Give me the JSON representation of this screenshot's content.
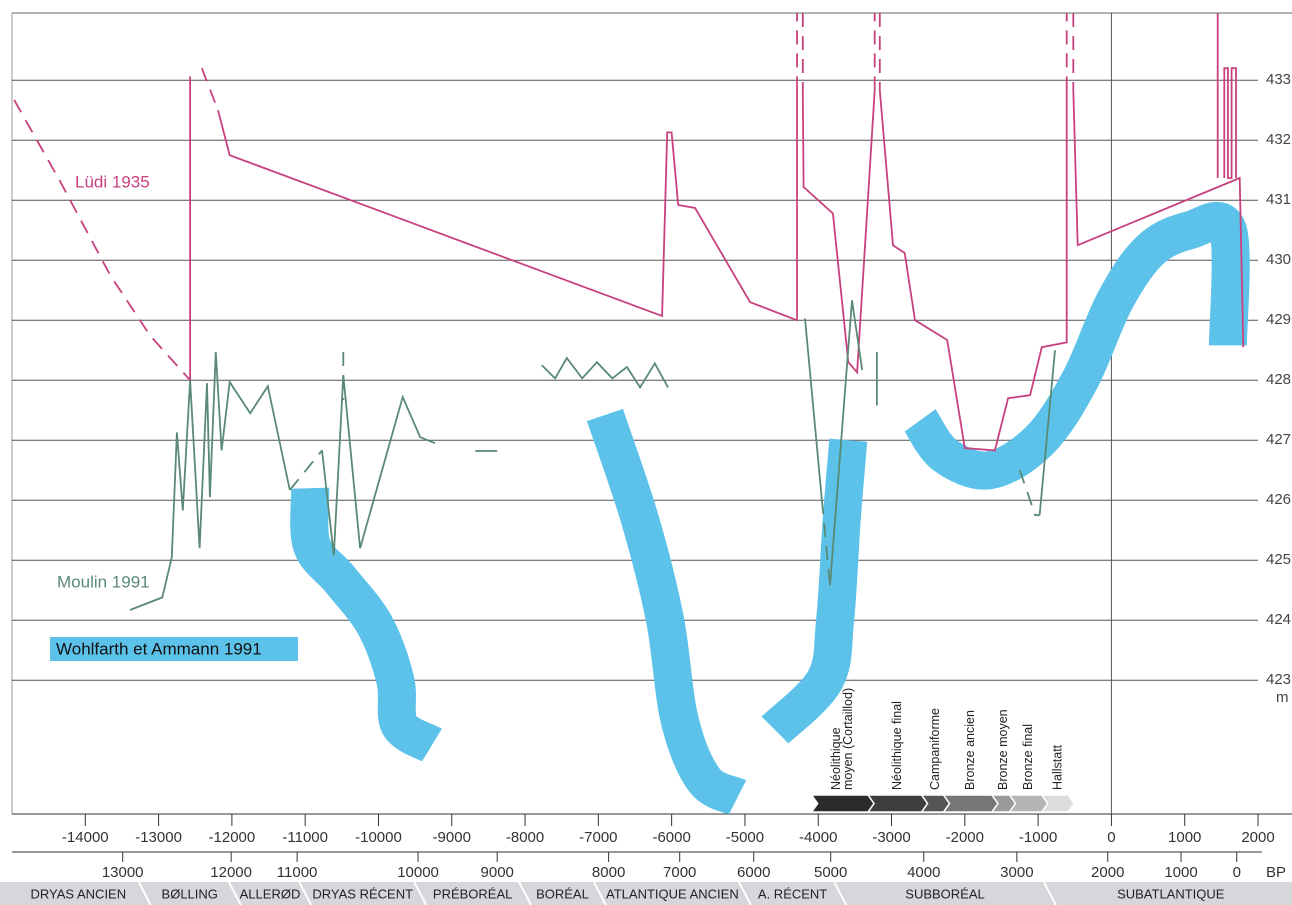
{
  "chart_data": {
    "type": "line",
    "xlim": [
      -15000,
      2000
    ],
    "ylim": [
      420.77,
      434.12
    ],
    "xticks": [
      -14000,
      -13000,
      -12000,
      -11000,
      -10000,
      -9000,
      -8000,
      -7000,
      -6000,
      -5000,
      -4000,
      -3000,
      -2000,
      -1000,
      0,
      1000,
      2000
    ],
    "yticks": [
      423,
      424,
      425,
      426,
      427,
      428,
      429,
      430,
      431,
      432,
      433
    ],
    "y_unit": "m",
    "grid": true,
    "x_refline": 0,
    "bp_axis": {
      "label": "BP",
      "ticks": [
        13000,
        12000,
        11000,
        10000,
        9000,
        8000,
        7000,
        6000,
        5000,
        4000,
        3000,
        2000,
        1000,
        0
      ],
      "cal_years": [
        -13490,
        -12010,
        -11110,
        -9460,
        -8380,
        -6860,
        -5890,
        -4880,
        -3830,
        -2560,
        -1290,
        -50,
        950,
        1710
      ]
    },
    "series": [
      {
        "name": "Lüdi 1935",
        "color": "#c8417f",
        "style": "line",
        "legend": "text",
        "pieces": [
          {
            "dashed": false,
            "x": [
              -12570,
              -12570,
              null,
              -12190,
              -12030,
              -6130,
              -6060,
              -6000,
              -5910,
              -5680,
              -4930,
              -4290,
              -4290,
              null,
              -4210,
              -4200,
              -3800,
              -3590,
              -3470,
              -3230,
              null,
              -3160,
              -2980,
              -2820,
              -2680,
              -2240,
              -2000,
              -1590,
              -1410,
              -1110,
              -950,
              -610,
              -610,
              null,
              -520,
              -460,
              1750,
              1800,
              null,
              1450,
              1450,
              null,
              1540,
              1540,
              1590,
              1590,
              1640,
              1640,
              1700,
              1700
            ],
            "y": [
              428.0,
              432.83,
              null,
              432.5,
              431.75,
              429.07,
              432.13,
              432.13,
              430.92,
              430.87,
              429.3,
              429.0,
              432.83,
              null,
              432.83,
              431.22,
              430.78,
              428.3,
              428.13,
              432.83,
              null,
              432.83,
              430.25,
              430.12,
              429.0,
              428.67,
              426.87,
              426.83,
              427.7,
              427.75,
              428.55,
              428.63,
              432.83,
              null,
              432.83,
              430.25,
              431.37,
              428.55,
              null,
              434.12,
              431.37,
              null,
              431.37,
              433.2,
              433.2,
              431.37,
              431.37,
              433.2,
              433.2,
              431.37
            ]
          },
          {
            "dashed": true,
            "x": [
              -14970,
              -14350,
              -13660,
              -13120,
              -12570,
              null,
              -12570,
              -12570,
              null,
              -12410,
              -12190,
              null,
              -4290,
              -4290,
              null,
              -4210,
              -4210,
              null,
              -3230,
              -3230,
              null,
              -3160,
              -3160,
              null,
              -610,
              -610,
              null,
              -520,
              -520
            ],
            "y": [
              432.67,
              431.33,
              429.75,
              428.75,
              428.0,
              null,
              432.83,
              433.13,
              null,
              433.2,
              432.5,
              null,
              432.83,
              434.12,
              null,
              434.12,
              432.83,
              null,
              432.83,
              434.12,
              null,
              434.12,
              432.83,
              null,
              432.83,
              434.12,
              null,
              434.12,
              432.83
            ]
          }
        ]
      },
      {
        "name": "Moulin 1991",
        "color": "#5a8a75",
        "style": "line",
        "legend": "text",
        "pieces": [
          {
            "dashed": false,
            "x": [
              -13390,
              -12950,
              -12820,
              -12750,
              -12670,
              -12570,
              -12440,
              -12340,
              -12300,
              -12220,
              -12140,
              -12030,
              -11750,
              -11510,
              -11210,
              null,
              -10770,
              -10610,
              -10480,
              -10250,
              -9670,
              -9430,
              -9230,
              null,
              -8680,
              -8380,
              null,
              -7770,
              -7590,
              -7430,
              -7220,
              -7020,
              -6810,
              -6610,
              -6430,
              -6230,
              -6050,
              null,
              -4180,
              -3950,
              null,
              -3840,
              -3540,
              -3400,
              null,
              -3200,
              -3200,
              null,
              -980,
              -770
            ],
            "y": [
              424.17,
              424.38,
              425.05,
              427.13,
              425.83,
              428.0,
              425.2,
              427.95,
              426.05,
              428.47,
              426.83,
              427.97,
              427.45,
              427.9,
              426.17,
              null,
              426.83,
              425.08,
              428.08,
              425.2,
              427.72,
              427.05,
              426.95,
              null,
              426.82,
              426.82,
              null,
              428.25,
              428.03,
              428.37,
              428.03,
              428.3,
              428.03,
              428.22,
              427.88,
              428.28,
              427.88,
              null,
              429.03,
              426.0,
              null,
              424.58,
              429.33,
              428.17,
              null,
              428.47,
              427.58,
              null,
              425.75,
              428.5
            ]
          },
          {
            "dashed": true,
            "x": [
              -11210,
              -10770,
              null,
              -10480,
              -10480,
              null,
              -3950,
              -3840,
              null,
              -1250,
              -1040,
              -980
            ],
            "y": [
              426.17,
              426.83,
              null,
              428.47,
              427.67,
              null,
              426.0,
              424.58,
              null,
              426.5,
              425.75,
              425.75
            ]
          }
        ]
      },
      {
        "name": "Wohlfarth et Ammann 1991",
        "color": "#5cc2ea",
        "style": "band",
        "legend": "box",
        "pieces": [
          {
            "dashed": false,
            "x": [
              -10930,
              -10910,
              -10520,
              -10050,
              -9770,
              -9710,
              -9270,
              null,
              -6910,
              -6430,
              -6090,
              -5890,
              -5550,
              -5100,
              null,
              -4590,
              -3910,
              -3770,
              -3680,
              -3590,
              null,
              -2610,
              -2270,
              -1660,
              -980,
              -430,
              50,
              530,
              1070,
              1590,
              1590
            ],
            "y": [
              426.2,
              425.25,
              424.67,
              423.92,
              423.0,
              422.25,
              421.92,
              null,
              427.42,
              425.67,
              424.0,
              422.33,
              421.33,
              421.05,
              null,
              422.17,
              423.0,
              424.0,
              425.67,
              427.0,
              null,
              427.33,
              426.75,
              426.5,
              427.0,
              428.0,
              429.33,
              430.17,
              430.5,
              430.5,
              428.58
            ]
          }
        ]
      }
    ],
    "cultures": [
      {
        "name": [
          "Néolithique",
          "moyen (Cortaillod)"
        ],
        "start": -4090,
        "end": -3320,
        "color": "#2b2b2b"
      },
      {
        "name": [
          "Néolithique final"
        ],
        "start": -3320,
        "end": -2590,
        "color": "#3d3d3d"
      },
      {
        "name": [
          "Campaniforme"
        ],
        "start": -2590,
        "end": -2290,
        "color": "#555555"
      },
      {
        "name": [
          "Bronze ancien"
        ],
        "start": -2290,
        "end": -1630,
        "color": "#777777"
      },
      {
        "name": [
          "Bronze moyen"
        ],
        "start": -1630,
        "end": -1390,
        "color": "#9a9a9a"
      },
      {
        "name": [
          "Bronze final"
        ],
        "start": -1390,
        "end": -950,
        "color": "#b5b5b5"
      },
      {
        "name": [
          "Hallstatt"
        ],
        "start": -950,
        "end": -590,
        "color": "#dcdcdc"
      }
    ],
    "periods": [
      {
        "name": "DRYAS ANCIEN",
        "start": -15000,
        "end": -13190
      },
      {
        "name": "BØLLING",
        "start": -13190,
        "end": -11960
      },
      {
        "name": "ALLERØD",
        "start": -11960,
        "end": -11000
      },
      {
        "name": "DRYAS RÉCENT",
        "start": -11000,
        "end": -9430
      },
      {
        "name": "PRÉBORÉAL",
        "start": -9430,
        "end": -8000
      },
      {
        "name": "BORÉAL",
        "start": -8000,
        "end": -6980
      },
      {
        "name": "ATLANTIQUE ANCIEN",
        "start": -6980,
        "end": -5000
      },
      {
        "name": "A. RÉCENT",
        "start": -5000,
        "end": -3700
      },
      {
        "name": "SUBBORÉAL",
        "start": -3700,
        "end": -840
      },
      {
        "name": "SUBATLANTIQUE",
        "start": -840,
        "end": 2460
      }
    ]
  }
}
